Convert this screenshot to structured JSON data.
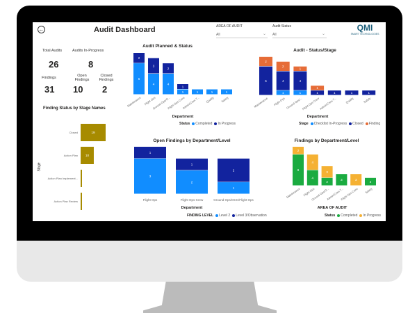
{
  "header": {
    "title": "Audit Dashboard",
    "back_icon": "circle-arrow-left-icon",
    "filters": [
      {
        "label": "AREA OF AUDIT",
        "value": "All"
      },
      {
        "label": "Audit Status",
        "value": "All"
      }
    ],
    "logo_text": "QMI SMART TECHNOLOGIES"
  },
  "kpis": {
    "total_audits": {
      "label": "Total Audits",
      "value": "26"
    },
    "in_progress": {
      "label": "Audits In-Progress",
      "value": "8"
    },
    "findings": {
      "label": "Findings",
      "value": "31"
    },
    "open_findings": {
      "label": "Open Findings",
      "value": "10"
    },
    "closed_findings": {
      "label": "Closed Findings",
      "value": "2"
    }
  },
  "colors": {
    "completed": "#118dff",
    "in_progress": "#12239e",
    "finding": "#e66c37",
    "gold": "#a78b00",
    "green": "#1aab40",
    "orange": "#f5b133"
  },
  "chart_data": [
    {
      "id": "stage",
      "type": "bar",
      "orientation": "horizontal",
      "title": "Finding Status by Stage Names",
      "ylabel": "Stage",
      "categories": [
        "Closed",
        "Action Plan",
        "Action Plan Implement...",
        "Action Plan Review"
      ],
      "values": [
        19,
        10,
        1,
        1
      ]
    },
    {
      "id": "planned",
      "type": "bar",
      "stacked": true,
      "title": "Audit Planned & Status",
      "xlabel": "Department",
      "legend_title": "Status",
      "categories": [
        "Maintenance",
        "Flight Ops",
        "Ground Ops/O...",
        "Flight Ops Crew",
        "Admin/Crew T...",
        "Quality",
        "Safety"
      ],
      "series": [
        {
          "name": "Completed",
          "values": [
            6,
            4,
            4,
            1,
            1,
            1,
            1
          ]
        },
        {
          "name": "In Progress",
          "values": [
            2,
            3,
            2,
            1,
            0,
            0,
            0
          ]
        }
      ]
    },
    {
      "id": "stagebar",
      "type": "bar",
      "stacked": true,
      "title": "Audit - Status/Stage",
      "xlabel": "Department",
      "legend_title": "Stage",
      "categories": [
        "Maintenance",
        "Flight Ops",
        "Ground Ops/...",
        "Flight Ops Crew",
        "Admin/Crew T...",
        "Quality",
        "Safety"
      ],
      "series": [
        {
          "name": "Checklist In-Progress",
          "values": [
            0,
            1,
            1,
            0,
            0,
            0,
            0
          ]
        },
        {
          "name": "Closed",
          "values": [
            6,
            4,
            4,
            1,
            1,
            1,
            1
          ]
        },
        {
          "name": "Finding",
          "values": [
            2,
            2,
            1,
            1,
            0,
            0,
            0
          ]
        }
      ]
    },
    {
      "id": "open",
      "type": "bar",
      "stacked": true,
      "title": "Open Findings by Department/Level",
      "xlabel": "Department",
      "legend_title": "FINDING LEVEL",
      "categories": [
        "Flight Ops",
        "Flight Ops-Crew",
        "Ground Ops/OCC/Flight Ops"
      ],
      "series": [
        {
          "name": "Level 2",
          "values": [
            3,
            2,
            1
          ]
        },
        {
          "name": "Level 3/Observation",
          "values": [
            1,
            1,
            2
          ]
        }
      ]
    },
    {
      "id": "findings",
      "type": "bar",
      "stacked": true,
      "title": "Findings by Department/Level",
      "xlabel": "AREA OF AUDIT",
      "legend_title": "Status",
      "categories": [
        "Maintenance",
        "Flight Ops",
        "Ground Ops/O...",
        "Admin/Crew T...",
        "Flight Ops Crew",
        "Safety"
      ],
      "series": [
        {
          "name": "Completed",
          "values": [
            8,
            4,
            2,
            3,
            0,
            2
          ]
        },
        {
          "name": "In Progress",
          "values": [
            2,
            4,
            3,
            0,
            3,
            0
          ]
        }
      ]
    }
  ]
}
